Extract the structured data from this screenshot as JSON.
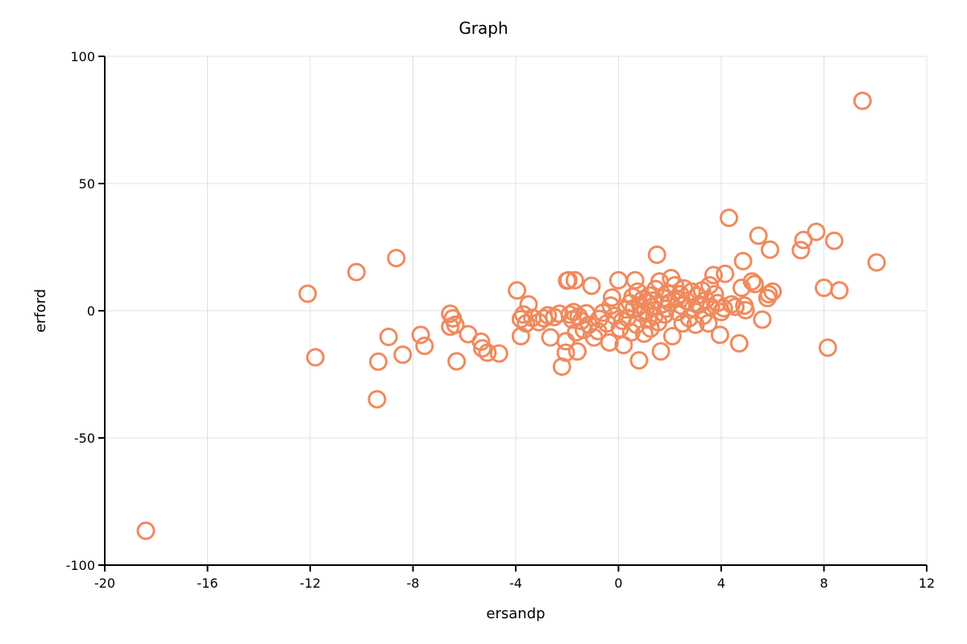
{
  "chart_data": {
    "type": "scatter",
    "title": "Graph",
    "xlabel": "ersandp",
    "ylabel": "erford",
    "xlim": [
      -20,
      12
    ],
    "ylim": [
      -100,
      100
    ],
    "xticks": [
      -20,
      -16,
      -12,
      -8,
      -4,
      0,
      4,
      8,
      12
    ],
    "yticks": [
      -100,
      -50,
      0,
      50,
      100
    ],
    "grid": true,
    "marker": {
      "shape": "hollow-circle",
      "color": "#f08a5d"
    },
    "points": [
      {
        "x": -18.4,
        "y": -86.5
      },
      {
        "x": -12.1,
        "y": 6.7
      },
      {
        "x": -11.8,
        "y": -18.3
      },
      {
        "x": -10.2,
        "y": 15.2
      },
      {
        "x": -9.4,
        "y": -34.8
      },
      {
        "x": -9.35,
        "y": -20.0
      },
      {
        "x": -8.95,
        "y": -10.3
      },
      {
        "x": -8.65,
        "y": 20.7
      },
      {
        "x": -8.4,
        "y": -17.3
      },
      {
        "x": -7.7,
        "y": -9.5
      },
      {
        "x": -7.55,
        "y": -13.8
      },
      {
        "x": -6.55,
        "y": -1.2
      },
      {
        "x": -6.45,
        "y": -3.0
      },
      {
        "x": -6.55,
        "y": -6.3
      },
      {
        "x": -6.35,
        "y": -5.5
      },
      {
        "x": -6.3,
        "y": -19.9
      },
      {
        "x": -5.85,
        "y": -9.2
      },
      {
        "x": -5.35,
        "y": -12.2
      },
      {
        "x": -5.3,
        "y": -14.8
      },
      {
        "x": -5.1,
        "y": -16.5
      },
      {
        "x": -4.65,
        "y": -16.8
      },
      {
        "x": -3.95,
        "y": 8.0
      },
      {
        "x": -3.8,
        "y": -3.3
      },
      {
        "x": -3.7,
        "y": -1.5
      },
      {
        "x": -3.6,
        "y": -5.0
      },
      {
        "x": -3.8,
        "y": -10.0
      },
      {
        "x": -3.5,
        "y": 2.5
      },
      {
        "x": -3.35,
        "y": -2.8
      },
      {
        "x": -3.1,
        "y": -4.5
      },
      {
        "x": -2.9,
        "y": -3.0
      },
      {
        "x": -2.75,
        "y": -1.8
      },
      {
        "x": -2.65,
        "y": -10.5
      },
      {
        "x": -2.5,
        "y": -2.5
      },
      {
        "x": -2.3,
        "y": -1.2
      },
      {
        "x": -2.2,
        "y": -22.0
      },
      {
        "x": -2.05,
        "y": -12.0
      },
      {
        "x": -2.05,
        "y": -16.5
      },
      {
        "x": -2.0,
        "y": 11.8
      },
      {
        "x": -1.95,
        "y": 12.0
      },
      {
        "x": -1.9,
        "y": -1.5
      },
      {
        "x": -1.8,
        "y": -3.5
      },
      {
        "x": -1.75,
        "y": -0.5
      },
      {
        "x": -1.7,
        "y": 12.0
      },
      {
        "x": -1.65,
        "y": -8.5
      },
      {
        "x": -1.6,
        "y": -16.0
      },
      {
        "x": -1.55,
        "y": -2.2
      },
      {
        "x": -1.45,
        "y": -4.0
      },
      {
        "x": -1.35,
        "y": -7.5
      },
      {
        "x": -1.25,
        "y": -1.0
      },
      {
        "x": -1.15,
        "y": -5.5
      },
      {
        "x": -1.05,
        "y": 9.8
      },
      {
        "x": -0.95,
        "y": -10.5
      },
      {
        "x": -0.8,
        "y": -8.0
      },
      {
        "x": -0.75,
        "y": -3.2
      },
      {
        "x": -0.6,
        "y": -0.8
      },
      {
        "x": -0.45,
        "y": -5.0
      },
      {
        "x": -0.35,
        "y": -12.5
      },
      {
        "x": -0.3,
        "y": 2.0
      },
      {
        "x": -0.25,
        "y": 5.2
      },
      {
        "x": -0.15,
        "y": -2.0
      },
      {
        "x": 0.0,
        "y": 12.0
      },
      {
        "x": 0.05,
        "y": -7.0
      },
      {
        "x": 0.15,
        "y": -4.0
      },
      {
        "x": 0.2,
        "y": -13.5
      },
      {
        "x": 0.3,
        "y": 0.5
      },
      {
        "x": 0.35,
        "y": -2.8
      },
      {
        "x": 0.45,
        "y": 3.0
      },
      {
        "x": 0.5,
        "y": -8.5
      },
      {
        "x": 0.55,
        "y": 5.5
      },
      {
        "x": 0.6,
        "y": 1.0
      },
      {
        "x": 0.65,
        "y": 12.0
      },
      {
        "x": 0.7,
        "y": -5.5
      },
      {
        "x": 0.75,
        "y": 7.5
      },
      {
        "x": 0.8,
        "y": -19.5
      },
      {
        "x": 0.85,
        "y": 2.2
      },
      {
        "x": 0.9,
        "y": -1.0
      },
      {
        "x": 0.95,
        "y": 4.5
      },
      {
        "x": 1.0,
        "y": -9.0
      },
      {
        "x": 1.05,
        "y": 0.0
      },
      {
        "x": 1.1,
        "y": 3.5
      },
      {
        "x": 1.15,
        "y": -3.5
      },
      {
        "x": 1.2,
        "y": 6.0
      },
      {
        "x": 1.25,
        "y": -7.0
      },
      {
        "x": 1.3,
        "y": 1.5
      },
      {
        "x": 1.35,
        "y": 4.0
      },
      {
        "x": 1.4,
        "y": -2.0
      },
      {
        "x": 1.45,
        "y": 8.5
      },
      {
        "x": 1.5,
        "y": 22.0
      },
      {
        "x": 1.55,
        "y": -4.5
      },
      {
        "x": 1.6,
        "y": 11.5
      },
      {
        "x": 1.65,
        "y": -16.0
      },
      {
        "x": 1.7,
        "y": 2.5
      },
      {
        "x": 1.75,
        "y": 5.0
      },
      {
        "x": 1.8,
        "y": -1.5
      },
      {
        "x": 1.85,
        "y": 0.8
      },
      {
        "x": 1.9,
        "y": 7.0
      },
      {
        "x": 2.0,
        "y": 3.2
      },
      {
        "x": 2.05,
        "y": 12.8
      },
      {
        "x": 2.1,
        "y": -10.0
      },
      {
        "x": 2.2,
        "y": 10.0
      },
      {
        "x": 2.25,
        "y": 4.8
      },
      {
        "x": 2.3,
        "y": -0.5
      },
      {
        "x": 2.4,
        "y": 6.5
      },
      {
        "x": 2.45,
        "y": 2.0
      },
      {
        "x": 2.5,
        "y": -5.0
      },
      {
        "x": 2.55,
        "y": 8.8
      },
      {
        "x": 2.65,
        "y": 3.8
      },
      {
        "x": 2.75,
        "y": -3.0
      },
      {
        "x": 2.85,
        "y": 7.5
      },
      {
        "x": 2.9,
        "y": 1.0
      },
      {
        "x": 3.0,
        "y": -5.5
      },
      {
        "x": 3.05,
        "y": 5.8
      },
      {
        "x": 3.15,
        "y": 2.5
      },
      {
        "x": 3.25,
        "y": 8.0
      },
      {
        "x": 3.3,
        "y": -2.0
      },
      {
        "x": 3.4,
        "y": 4.2
      },
      {
        "x": 3.5,
        "y": -5.0
      },
      {
        "x": 3.55,
        "y": 10.0
      },
      {
        "x": 3.6,
        "y": 1.5
      },
      {
        "x": 3.7,
        "y": 14.0
      },
      {
        "x": 3.75,
        "y": 6.5
      },
      {
        "x": 3.85,
        "y": 3.0
      },
      {
        "x": 3.95,
        "y": -9.5
      },
      {
        "x": 4.0,
        "y": -0.5
      },
      {
        "x": 4.1,
        "y": 1.0
      },
      {
        "x": 4.15,
        "y": 14.5
      },
      {
        "x": 4.3,
        "y": 36.5
      },
      {
        "x": 4.4,
        "y": 2.5
      },
      {
        "x": 4.55,
        "y": 1.5
      },
      {
        "x": 4.7,
        "y": -12.8
      },
      {
        "x": 4.8,
        "y": 9.0
      },
      {
        "x": 4.85,
        "y": 19.5
      },
      {
        "x": 4.9,
        "y": 2.0
      },
      {
        "x": 4.95,
        "y": 0.2
      },
      {
        "x": 5.2,
        "y": 11.5
      },
      {
        "x": 5.3,
        "y": 10.5
      },
      {
        "x": 5.45,
        "y": 29.5
      },
      {
        "x": 5.6,
        "y": -3.5
      },
      {
        "x": 5.8,
        "y": 5.0
      },
      {
        "x": 5.85,
        "y": 6.5
      },
      {
        "x": 5.9,
        "y": 24.0
      },
      {
        "x": 6.0,
        "y": 7.5
      },
      {
        "x": 7.1,
        "y": 23.8
      },
      {
        "x": 7.2,
        "y": 27.8
      },
      {
        "x": 7.7,
        "y": 31.0
      },
      {
        "x": 8.0,
        "y": 9.0
      },
      {
        "x": 8.15,
        "y": -14.5
      },
      {
        "x": 8.4,
        "y": 27.5
      },
      {
        "x": 8.6,
        "y": 8.0
      },
      {
        "x": 9.5,
        "y": 82.5
      },
      {
        "x": 10.05,
        "y": 19.0
      }
    ]
  }
}
